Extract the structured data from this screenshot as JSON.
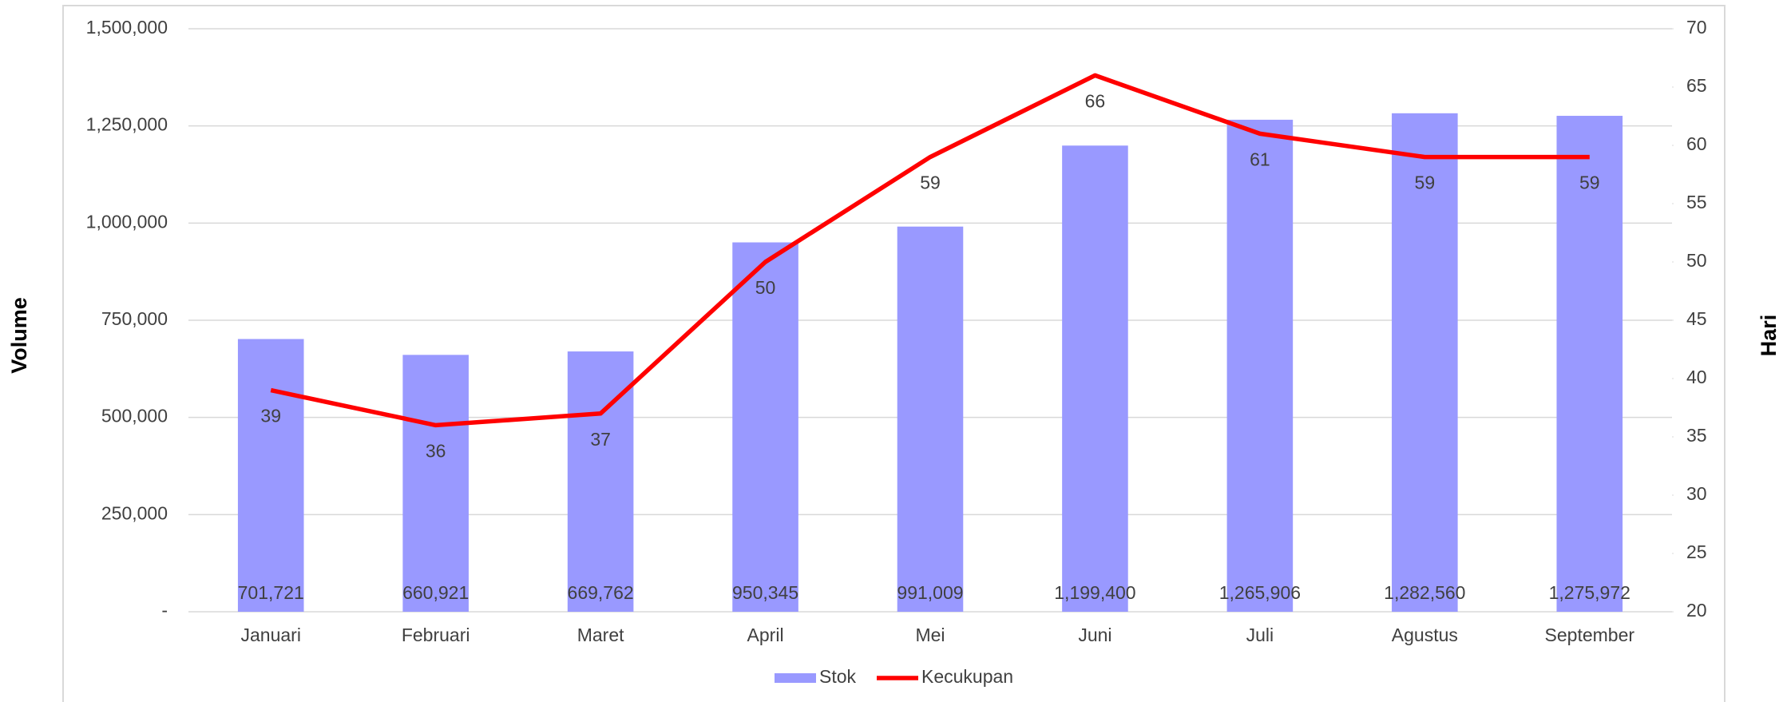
{
  "chart_data": {
    "type": "bar",
    "categories": [
      "Januari",
      "Februari",
      "Maret",
      "April",
      "Mei",
      "Juni",
      "Juli",
      "Agustus",
      "September"
    ],
    "series": [
      {
        "name": "Stok",
        "type": "bar",
        "color": "#9999ff",
        "values": [
          701721,
          660921,
          669762,
          950345,
          991009,
          1199400,
          1265906,
          1282560,
          1275972
        ],
        "value_labels": [
          "701,721",
          "660,921",
          "669,762",
          "950,345",
          "991,009",
          "1,199,400",
          "1,265,906",
          "1,282,560",
          "1,275,972"
        ]
      },
      {
        "name": "Kecukupan",
        "type": "line",
        "axis": "y2",
        "color": "#ff0000",
        "values": [
          39,
          36,
          37,
          50,
          59,
          66,
          61,
          59,
          59
        ]
      }
    ],
    "ylabel": "Volume",
    "y2label": "Hari",
    "ylim": [
      0,
      1500000
    ],
    "yticks": [
      {
        "value": 0,
        "label": "-"
      },
      {
        "value": 250000,
        "label": "250,000"
      },
      {
        "value": 500000,
        "label": "500,000"
      },
      {
        "value": 750000,
        "label": "750,000"
      },
      {
        "value": 1000000,
        "label": "1,000,000"
      },
      {
        "value": 1250000,
        "label": "1,250,000"
      },
      {
        "value": 1500000,
        "label": "1,500,000"
      }
    ],
    "y2lim": [
      20,
      70
    ],
    "y2ticks": [
      20,
      25,
      30,
      35,
      40,
      45,
      50,
      55,
      60,
      65,
      70
    ],
    "grid": true,
    "legend": "bottom"
  }
}
